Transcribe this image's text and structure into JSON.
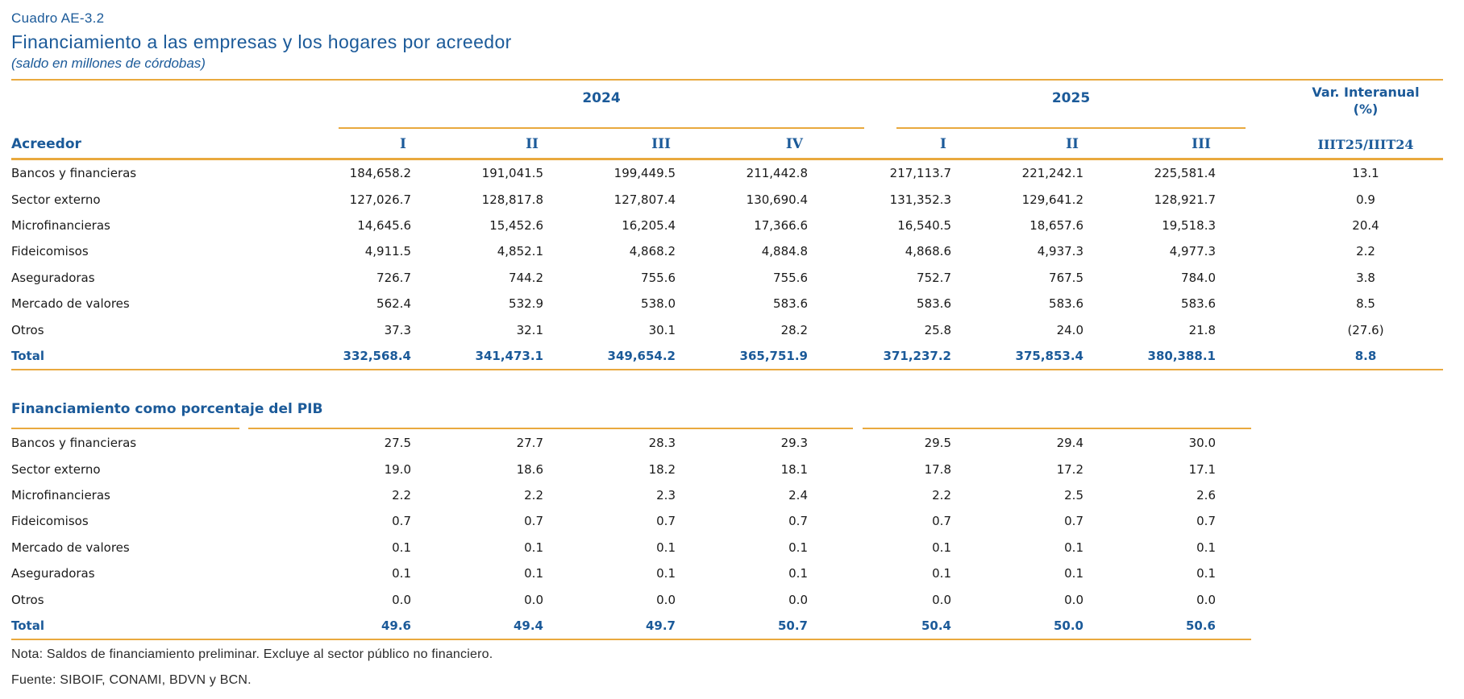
{
  "document": {
    "code": "Cuadro AE-3.2",
    "title": "Financiamiento a las empresas y los hogares por acreedor",
    "subtitle": "(saldo en millones de córdobas)",
    "note": "Nota: Saldos de financiamiento preliminar. Excluye al sector público no financiero.",
    "source": "Fuente: SIBOIF, CONAMI, BDVN y BCN."
  },
  "colors": {
    "accent_blue": "#1B5A99",
    "gold_rule": "#E9A93E",
    "body_text": "#1A1A1A"
  },
  "table": {
    "row_header": "Acreedor",
    "year_groups": [
      {
        "label": "2024",
        "quarters": [
          "I",
          "II",
          "III",
          "IV"
        ]
      },
      {
        "label": "2025",
        "quarters": [
          "I",
          "II",
          "III"
        ]
      }
    ],
    "quarter_headers": [
      "I",
      "II",
      "III",
      "IV",
      "I",
      "II",
      "III"
    ],
    "var_header_line1": "Var. Interanual",
    "var_header_line2": "(%)",
    "var_subheader": "IIIT25/IIIT24",
    "sections": [
      {
        "title": "",
        "rows": [
          {
            "label": "Bancos y financieras",
            "values": [
              "184,658.2",
              "191,041.5",
              "199,449.5",
              "211,442.8",
              "217,113.7",
              "221,242.1",
              "225,581.4"
            ],
            "var": "13.1",
            "total": false
          },
          {
            "label": "Sector externo",
            "values": [
              "127,026.7",
              "128,817.8",
              "127,807.4",
              "130,690.4",
              "131,352.3",
              "129,641.2",
              "128,921.7"
            ],
            "var": "0.9",
            "total": false
          },
          {
            "label": "Microfinancieras",
            "values": [
              "14,645.6",
              "15,452.6",
              "16,205.4",
              "17,366.6",
              "16,540.5",
              "18,657.6",
              "19,518.3"
            ],
            "var": "20.4",
            "total": false
          },
          {
            "label": "Fideicomisos",
            "values": [
              "4,911.5",
              "4,852.1",
              "4,868.2",
              "4,884.8",
              "4,868.6",
              "4,937.3",
              "4,977.3"
            ],
            "var": "2.2",
            "total": false
          },
          {
            "label": "Aseguradoras",
            "values": [
              "726.7",
              "744.2",
              "755.6",
              "755.6",
              "752.7",
              "767.5",
              "784.0"
            ],
            "var": "3.8",
            "total": false
          },
          {
            "label": "Mercado de valores",
            "values": [
              "562.4",
              "532.9",
              "538.0",
              "583.6",
              "583.6",
              "583.6",
              "583.6"
            ],
            "var": "8.5",
            "total": false
          },
          {
            "label": "Otros",
            "values": [
              "37.3",
              "32.1",
              "30.1",
              "28.2",
              "25.8",
              "24.0",
              "21.8"
            ],
            "var": "(27.6)",
            "total": false
          },
          {
            "label": "Total",
            "values": [
              "332,568.4",
              "341,473.1",
              "349,654.2",
              "365,751.9",
              "371,237.2",
              "375,853.4",
              "380,388.1"
            ],
            "var": "8.8",
            "total": true
          }
        ]
      },
      {
        "title": "Financiamiento como porcentaje del PIB",
        "rows": [
          {
            "label": "Bancos y financieras",
            "values": [
              "27.5",
              "27.7",
              "28.3",
              "29.3",
              "29.5",
              "29.4",
              "30.0"
            ],
            "var": "",
            "total": false
          },
          {
            "label": "Sector externo",
            "values": [
              "19.0",
              "18.6",
              "18.2",
              "18.1",
              "17.8",
              "17.2",
              "17.1"
            ],
            "var": "",
            "total": false
          },
          {
            "label": "Microfinancieras",
            "values": [
              "2.2",
              "2.2",
              "2.3",
              "2.4",
              "2.2",
              "2.5",
              "2.6"
            ],
            "var": "",
            "total": false
          },
          {
            "label": "Fideicomisos",
            "values": [
              "0.7",
              "0.7",
              "0.7",
              "0.7",
              "0.7",
              "0.7",
              "0.7"
            ],
            "var": "",
            "total": false
          },
          {
            "label": "Mercado de valores",
            "values": [
              "0.1",
              "0.1",
              "0.1",
              "0.1",
              "0.1",
              "0.1",
              "0.1"
            ],
            "var": "",
            "total": false
          },
          {
            "label": "Aseguradoras",
            "values": [
              "0.1",
              "0.1",
              "0.1",
              "0.1",
              "0.1",
              "0.1",
              "0.1"
            ],
            "var": "",
            "total": false
          },
          {
            "label": "Otros",
            "values": [
              "0.0",
              "0.0",
              "0.0",
              "0.0",
              "0.0",
              "0.0",
              "0.0"
            ],
            "var": "",
            "total": false
          },
          {
            "label": "Total",
            "values": [
              "49.6",
              "49.4",
              "49.7",
              "50.7",
              "50.4",
              "50.0",
              "50.6"
            ],
            "var": "",
            "total": true
          }
        ]
      }
    ]
  }
}
